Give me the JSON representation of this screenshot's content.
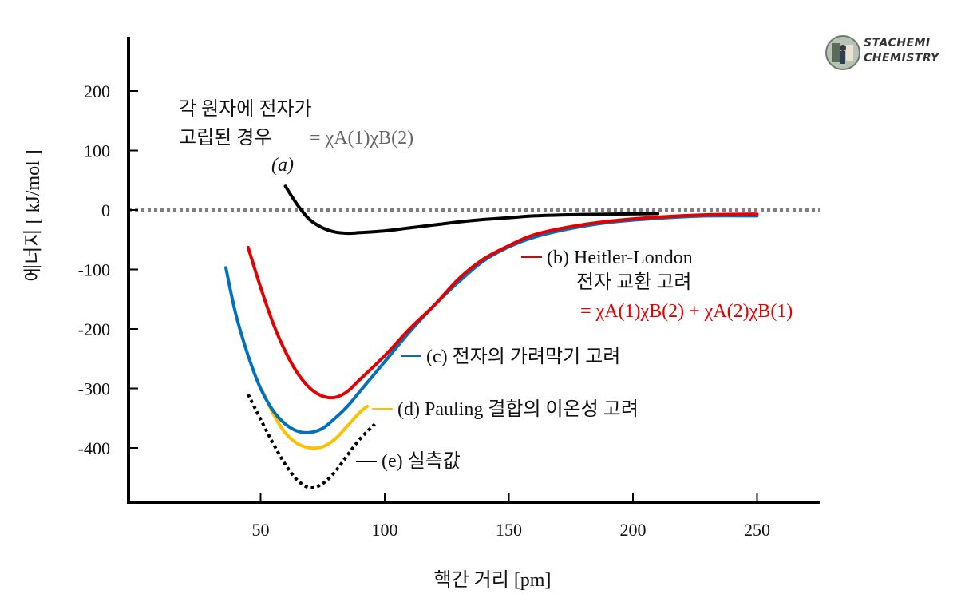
{
  "brand": {
    "line1": "STACHEMI",
    "line2": "CHEMISTRY"
  },
  "chart_data": {
    "type": "line",
    "xlabel": "핵간 거리 [pm]",
    "ylabel": "에너지 [ kJ/mol ]",
    "xlim": [
      0,
      275
    ],
    "ylim": [
      -490,
      290
    ],
    "xticks": [
      50,
      100,
      150,
      200,
      250
    ],
    "yticks": [
      200,
      100,
      0,
      -100,
      -200,
      -300,
      -400
    ],
    "reference_line": {
      "y": 0,
      "style": "dotted",
      "color": "#808080"
    },
    "series": [
      {
        "id": "a",
        "name": "(a) 각 원자에 전자가 고립된 경우",
        "color": "#000000",
        "style": "solid",
        "x": [
          60,
          63,
          66,
          70,
          75,
          80,
          85,
          90,
          100,
          110,
          120,
          130,
          140,
          150,
          160,
          175,
          190,
          210
        ],
        "y": [
          40,
          20,
          2,
          -17,
          -30,
          -37,
          -39,
          -38,
          -35,
          -30,
          -25,
          -20,
          -16,
          -13,
          -10,
          -8,
          -7,
          -6
        ]
      },
      {
        "id": "b",
        "name": "(b) Heitler-London 전자 교환 고려",
        "color": "#e30000",
        "style": "solid",
        "x": [
          45,
          50,
          55,
          60,
          65,
          70,
          75,
          80,
          85,
          90,
          100,
          110,
          120,
          130,
          140,
          150,
          160,
          175,
          190,
          210,
          230,
          250
        ],
        "y": [
          -63,
          -130,
          -190,
          -238,
          -275,
          -300,
          -313,
          -315,
          -305,
          -285,
          -245,
          -200,
          -160,
          -115,
          -82,
          -60,
          -42,
          -28,
          -19,
          -12,
          -8,
          -7
        ]
      },
      {
        "id": "c",
        "name": "(c) 전자의 가려막기 고려",
        "color": "#0070c0",
        "style": "solid",
        "x": [
          36,
          40,
          45,
          50,
          55,
          60,
          65,
          70,
          75,
          80,
          85,
          90,
          100,
          110,
          120,
          130,
          140,
          150,
          160,
          175,
          190,
          210,
          230,
          250
        ],
        "y": [
          -97,
          -175,
          -245,
          -300,
          -337,
          -360,
          -372,
          -374,
          -367,
          -350,
          -330,
          -305,
          -255,
          -205,
          -160,
          -120,
          -85,
          -62,
          -46,
          -31,
          -21,
          -14,
          -10,
          -10
        ]
      },
      {
        "id": "d",
        "name": "(d) Pauling 결합의 이온성 고려",
        "color": "#ffc000",
        "style": "solid",
        "x": [
          51,
          55,
          60,
          65,
          70,
          75,
          80,
          85,
          90,
          93
        ],
        "y": [
          -306,
          -342,
          -375,
          -393,
          -400,
          -398,
          -385,
          -363,
          -340,
          -330
        ]
      },
      {
        "id": "e",
        "name": "(e) 실측값",
        "color": "#000000",
        "style": "dotted",
        "x": [
          45,
          50,
          55,
          60,
          65,
          70,
          75,
          80,
          85,
          90,
          96
        ],
        "y": [
          -310,
          -352,
          -392,
          -428,
          -455,
          -467,
          -460,
          -440,
          -412,
          -385,
          -360
        ]
      }
    ],
    "annotations": {
      "a": {
        "label": "(a)",
        "line1": "각 원자에 전자가",
        "line2": "고립된 경우",
        "formula": "= χA(1)χB(2)"
      },
      "b": {
        "line1": "(b) Heitler-London",
        "line2": "전자 교환 고려",
        "formula": "= χA(1)χB(2) + χA(2)χB(1)"
      },
      "c": {
        "text": "(c) 전자의 가려막기 고려"
      },
      "d": {
        "text": "(d) Pauling 결합의 이온성 고려"
      },
      "e": {
        "text": "(e) 실측값"
      }
    },
    "colors": {
      "axis": "#000000",
      "reference": "#808080",
      "formula_grey": "#666666",
      "formula_red": "#e30000"
    }
  }
}
